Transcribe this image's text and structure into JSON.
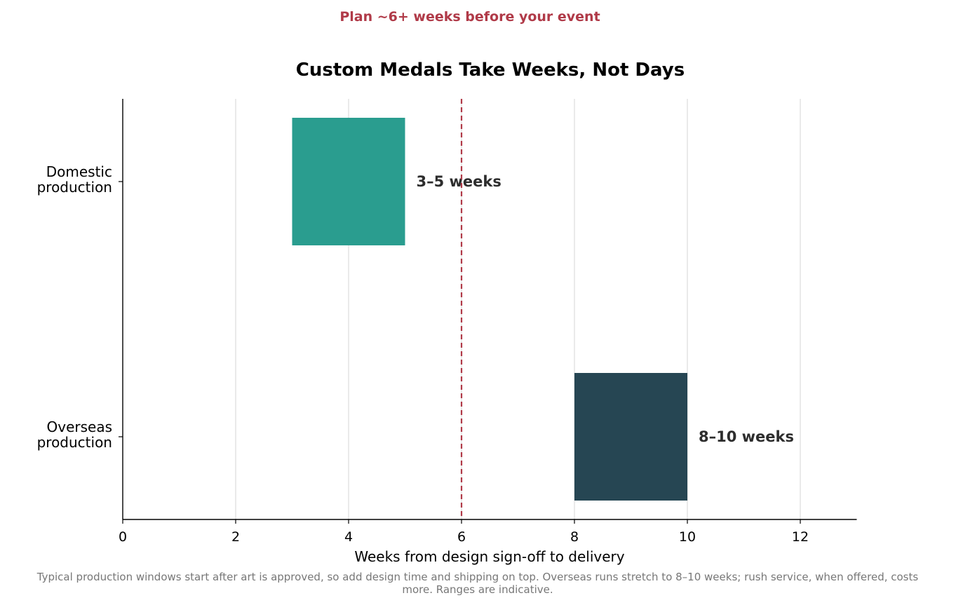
{
  "chart_data": {
    "type": "bar",
    "orientation": "horizontal",
    "title": "Custom Medals Take Weeks, Not Days",
    "annotation": "Plan ~6+ weeks before your event",
    "xlabel": "Weeks from design sign-off to delivery",
    "ylabel": "",
    "xlim": [
      0,
      13
    ],
    "xticks": [
      0,
      2,
      4,
      6,
      8,
      10,
      12
    ],
    "grid": "vertical",
    "reference_line": {
      "x": 6,
      "style": "dashed",
      "color": "#b03a48"
    },
    "categories": [
      {
        "label_lines": [
          "Domestic",
          "production"
        ],
        "start": 3,
        "end": 5,
        "label": "3–5 weeks",
        "color": "#2a9d8f"
      },
      {
        "label_lines": [
          "Overseas",
          "production"
        ],
        "start": 8,
        "end": 10,
        "label": "8–10 weeks",
        "color": "#264653"
      }
    ],
    "footnote_lines": [
      "Typical production windows start after art is approved, so add design time and shipping on top. Overseas runs stretch to 8–10 weeks; rush service, when offered, costs",
      "more. Ranges are indicative."
    ]
  }
}
